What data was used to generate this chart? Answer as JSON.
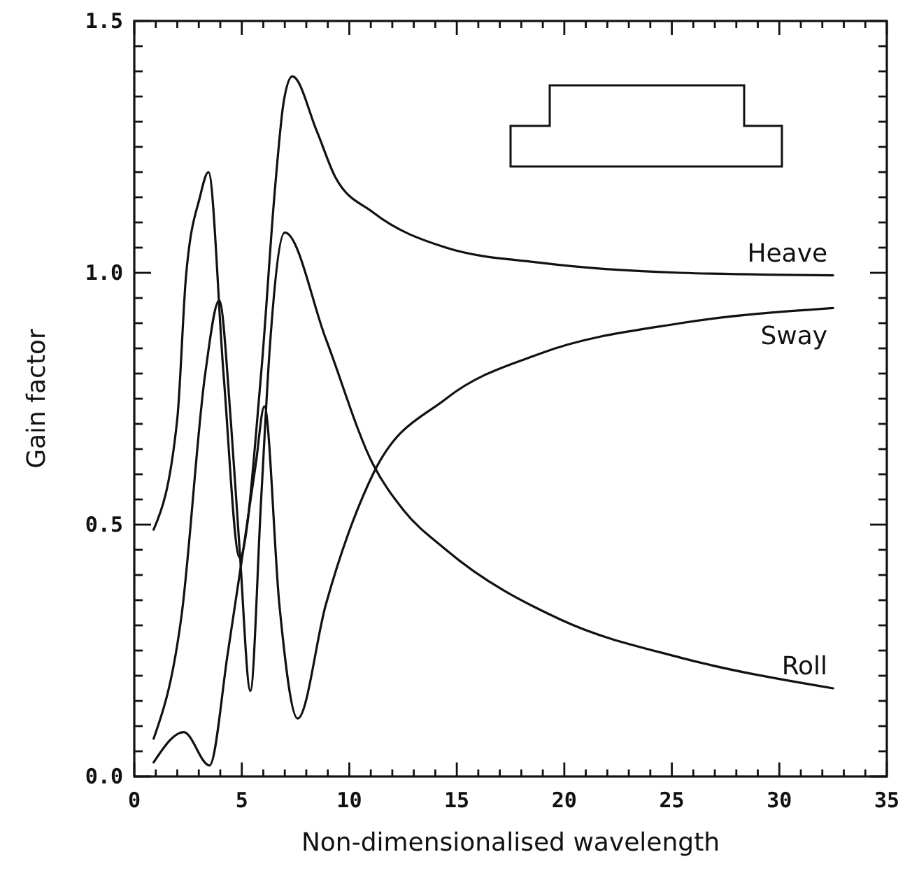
{
  "chart_data": {
    "type": "line",
    "xlabel": "Non-dimensionalised wavelength",
    "ylabel": "Gain factor",
    "xlim": [
      0,
      35
    ],
    "ylim": [
      0,
      1.5
    ],
    "xticks": [
      0,
      5,
      10,
      15,
      20,
      25,
      30,
      35
    ],
    "yticks": [
      {
        "value": 0,
        "label": "0.0"
      },
      0.5,
      {
        "value": 1,
        "label": "1.0"
      },
      1.5
    ],
    "grid": false,
    "legend": "right",
    "marker": "none",
    "line_style": "solid",
    "series": [
      {
        "name": "Heave",
        "color": "#111111",
        "x": [
          0.9,
          2.0,
          2.4,
          3.05,
          3.45,
          4.15,
          4.9,
          5.9,
          6.55,
          6.95,
          7.35,
          8.5,
          9.35,
          11.1,
          14.5,
          18.9,
          25.4,
          32.5
        ],
        "values": [
          0.49,
          0.71,
          0.99,
          1.15,
          1.2,
          0.8,
          0.435,
          0.8,
          1.17,
          1.34,
          1.39,
          1.28,
          1.19,
          1.12,
          1.05,
          1.02,
          1.0,
          0.995
        ]
      },
      {
        "name": "Sway",
        "color": "#111111",
        "x": [
          0.9,
          2.3,
          3.5,
          4.35,
          5.0,
          5.65,
          6.05,
          6.75,
          7.6,
          8.9,
          11.1,
          14.5,
          18.9,
          25.4,
          32.5
        ],
        "values": [
          0.028,
          0.088,
          0.022,
          0.245,
          0.43,
          0.62,
          0.735,
          0.34,
          0.115,
          0.34,
          0.6,
          0.75,
          0.84,
          0.9,
          0.93
        ]
      },
      {
        "name": "Roll",
        "color": "#111111",
        "x": [
          0.9,
          2.2,
          3.3,
          3.95,
          4.5,
          4.9,
          5.4,
          5.9,
          6.3,
          7.0,
          8.9,
          11.1,
          12.5,
          14.5,
          19.9,
          25.4,
          32.5
        ],
        "values": [
          0.075,
          0.32,
          0.8,
          0.945,
          0.7,
          0.45,
          0.17,
          0.55,
          0.85,
          1.08,
          0.87,
          0.62,
          0.53,
          0.45,
          0.31,
          0.236,
          0.175
        ]
      }
    ]
  }
}
